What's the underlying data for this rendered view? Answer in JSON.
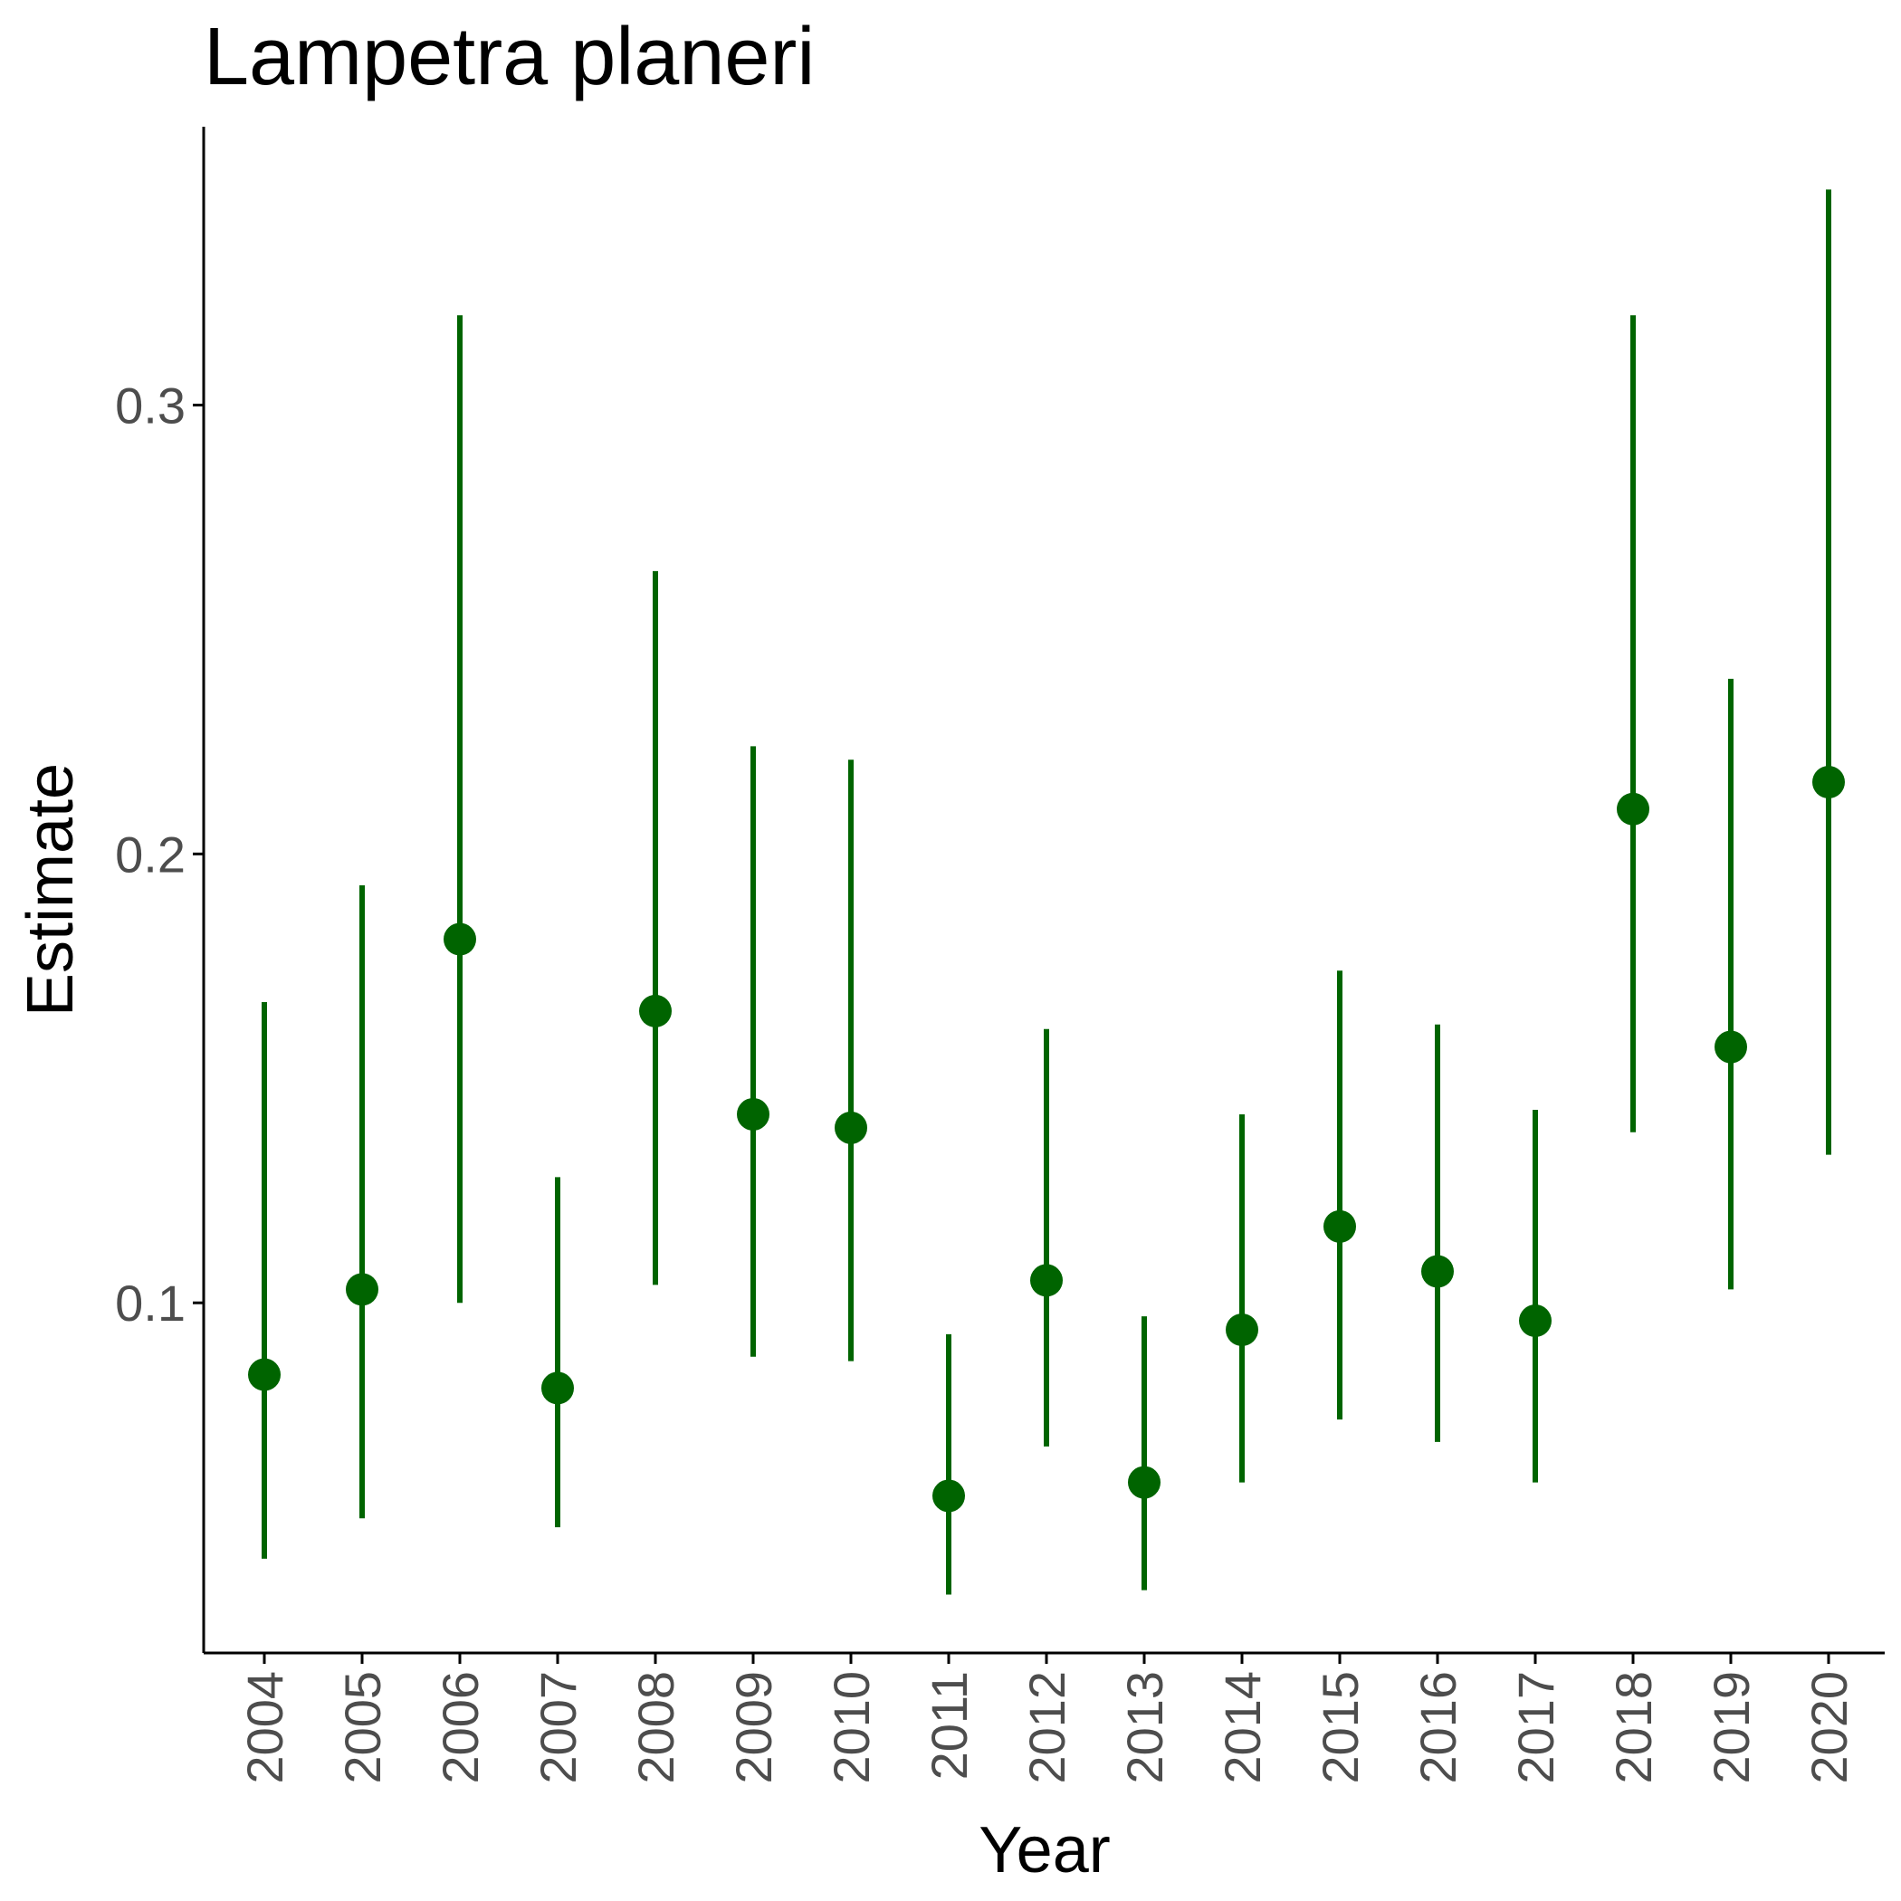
{
  "chart_data": {
    "type": "scatter",
    "title": "Lampetra planeri",
    "xlabel": "Year",
    "ylabel": "Estimate",
    "ylim": [
      0.022,
      0.362
    ],
    "yticks": [
      0.1,
      0.2,
      0.3
    ],
    "ytick_labels": [
      "0.1",
      "0.2",
      "0.3"
    ],
    "grid": false,
    "legend": "none",
    "colors": {
      "series": "#006400",
      "axis": "#000000",
      "tick_text": "#4d4d4d"
    },
    "categories": [
      "2004",
      "2005",
      "2006",
      "2007",
      "2008",
      "2009",
      "2010",
      "2011",
      "2012",
      "2013",
      "2014",
      "2015",
      "2016",
      "2017",
      "2018",
      "2019",
      "2020"
    ],
    "series": [
      {
        "estimate": [
          0.084,
          0.103,
          0.181,
          0.081,
          0.165,
          0.142,
          0.139,
          0.057,
          0.105,
          0.06,
          0.094,
          0.117,
          0.107,
          0.096,
          0.21,
          0.157,
          0.216
        ],
        "lower": [
          0.043,
          0.052,
          0.1,
          0.05,
          0.104,
          0.088,
          0.087,
          0.035,
          0.068,
          0.036,
          0.06,
          0.074,
          0.069,
          0.06,
          0.138,
          0.103,
          0.133
        ],
        "upper": [
          0.167,
          0.193,
          0.32,
          0.128,
          0.263,
          0.224,
          0.221,
          0.093,
          0.161,
          0.097,
          0.142,
          0.174,
          0.162,
          0.143,
          0.32,
          0.239,
          0.348
        ]
      }
    ]
  }
}
